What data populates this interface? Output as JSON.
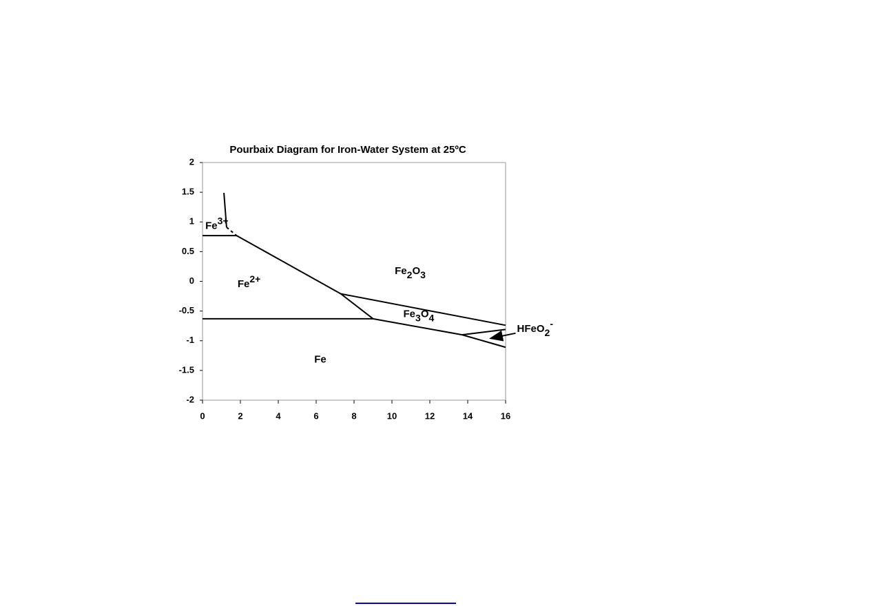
{
  "chart_data": {
    "type": "line",
    "title": "Pourbaix Diagram for Iron-Water System at 25ºC",
    "xlim": [
      0,
      16
    ],
    "xticks": [
      0,
      2,
      4,
      6,
      8,
      10,
      12,
      14,
      16
    ],
    "ylim": [
      -2,
      2
    ],
    "yticks": [
      2,
      1.5,
      1,
      0.5,
      0,
      -0.5,
      -1,
      -1.5,
      -2
    ],
    "series": [
      {
        "color": "#000000",
        "x": [
          0,
          9
        ],
        "values": [
          -0.63,
          -0.63
        ]
      },
      {
        "color": "#000000",
        "x": [
          0,
          1.8
        ],
        "values": [
          0.77,
          0.77
        ]
      },
      {
        "color": "#000000",
        "x": [
          1.8,
          7.3
        ],
        "values": [
          0.77,
          -0.21
        ]
      },
      {
        "color": "#000000",
        "x": [
          1.13,
          1.27
        ],
        "values": [
          1.49,
          0.91
        ]
      },
      {
        "color": "#000000",
        "style": "dashed",
        "x": [
          1.27,
          1.8
        ],
        "values": [
          0.91,
          0.77
        ]
      },
      {
        "color": "#000000",
        "x": [
          7.3,
          9
        ],
        "values": [
          -0.21,
          -0.63
        ]
      },
      {
        "color": "#000000",
        "x": [
          7.3,
          16
        ],
        "values": [
          -0.21,
          -0.74
        ]
      },
      {
        "color": "#000000",
        "x": [
          9,
          13.7
        ],
        "values": [
          -0.63,
          -0.9
        ]
      },
      {
        "color": "#000000",
        "x": [
          13.7,
          16
        ],
        "values": [
          -0.9,
          -0.81
        ]
      },
      {
        "color": "#000000",
        "x": [
          13.7,
          16
        ],
        "values": [
          -0.9,
          -1.11
        ]
      }
    ],
    "annotations": [
      {
        "parts": [
          "Fe",
          "3+"
        ],
        "x": 0.15,
        "y": 0.88
      },
      {
        "parts": [
          "Fe",
          "2+"
        ],
        "x": 1.85,
        "y": -0.1
      },
      {
        "parts": [
          "Fe",
          "2",
          "O",
          "3"
        ],
        "x": 10.15,
        "y": 0.12
      },
      {
        "parts": [
          "Fe",
          "3",
          "O",
          "4"
        ],
        "x": 10.6,
        "y": -0.6
      },
      {
        "parts": [
          "HFeO",
          "2",
          "-"
        ],
        "x": 16.6,
        "y": -0.85,
        "arrow_to": [
          15.2,
          -0.96
        ]
      },
      {
        "parts": [
          "Fe"
        ],
        "x": 5.9,
        "y": -1.37
      }
    ]
  }
}
